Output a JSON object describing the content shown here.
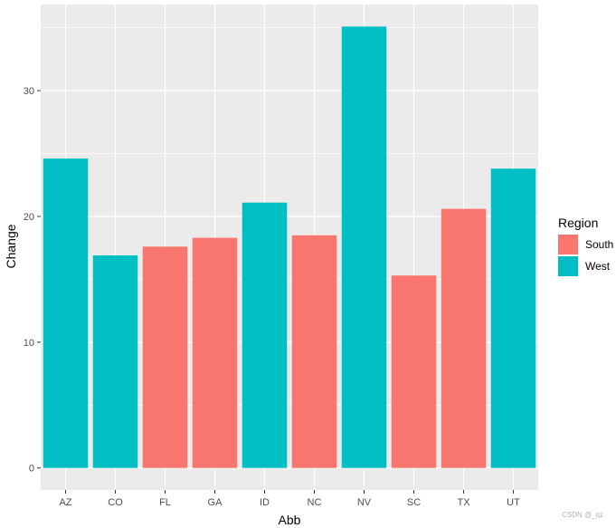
{
  "chart_data": {
    "type": "bar",
    "title": "",
    "xlabel": "Abb",
    "ylabel": "Change",
    "categories": [
      "AZ",
      "CO",
      "FL",
      "GA",
      "ID",
      "NC",
      "NV",
      "SC",
      "TX",
      "UT"
    ],
    "values": [
      24.6,
      16.9,
      17.6,
      18.3,
      21.1,
      18.5,
      35.1,
      15.3,
      20.6,
      23.8
    ],
    "groups": [
      "West",
      "West",
      "South",
      "South",
      "West",
      "South",
      "West",
      "South",
      "South",
      "West"
    ],
    "ylim": [
      -1.75,
      36.85
    ],
    "yticks": [
      0,
      10,
      20,
      30
    ],
    "grid": true,
    "legend": {
      "title": "Region",
      "position": "right",
      "entries": [
        {
          "name": "South",
          "color": "#F8766D"
        },
        {
          "name": "West",
          "color": "#00BFC4"
        }
      ]
    },
    "panel_background": "#EBEBEB",
    "grid_color": "#FFFFFF"
  },
  "watermark": "CSDN @_qz"
}
